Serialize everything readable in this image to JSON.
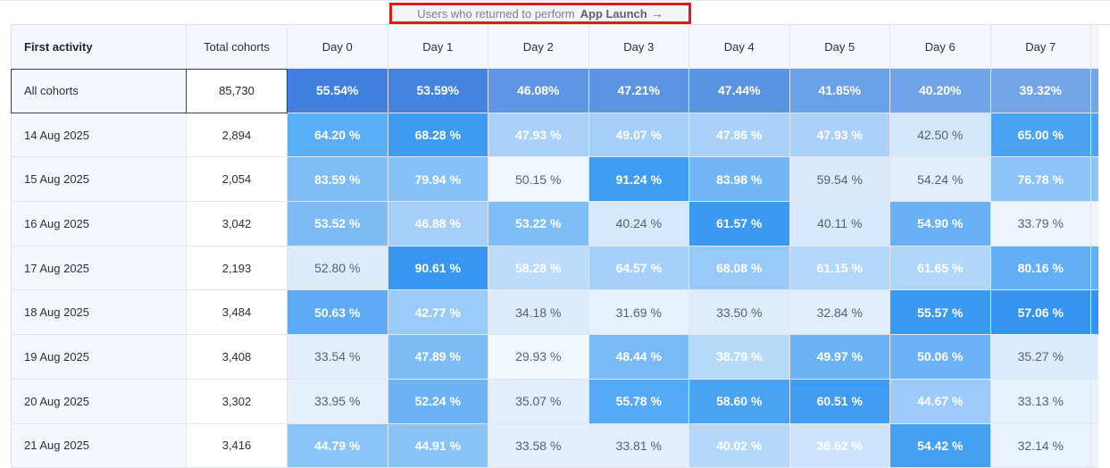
{
  "banner": {
    "prefix": "Users who returned to perform",
    "event": "App Launch",
    "arrow": "→"
  },
  "table": {
    "headers": {
      "first_activity": "First activity",
      "total_cohorts": "Total cohorts",
      "days": [
        "Day 0",
        "Day 1",
        "Day 2",
        "Day 3",
        "Day 4",
        "Day 5",
        "Day 6",
        "Day 7"
      ]
    },
    "all_cohorts": {
      "label": "All cohorts",
      "total": "85,730",
      "values": [
        "55.54%",
        "53.59%",
        "46.08%",
        "47.21%",
        "47.44%",
        "41.85%",
        "40.20%",
        "39.32%"
      ],
      "colors": [
        "#3f7fdf",
        "#4583e0",
        "#5e95e4",
        "#5c93e3",
        "#5b93e3",
        "#6aa0e7",
        "#70a3e8",
        "#73a5e8"
      ]
    },
    "rows": [
      {
        "date": "14 Aug 2025",
        "total": "2,894",
        "values": [
          "64.20 %",
          "68.28 %",
          "47.93 %",
          "49.07 %",
          "47.86 %",
          "47.93 %",
          "42.50 %",
          "65.00 %"
        ],
        "colors": [
          "#5aaef6",
          "#3d9cf1",
          "#a9d1fa",
          "#a4cffa",
          "#a9d1fa",
          "#a9d1fa",
          "#d3e7fb",
          "#4aa4f3"
        ],
        "dark": [
          true,
          true,
          true,
          true,
          true,
          true,
          false,
          true
        ]
      },
      {
        "date": "15 Aug 2025",
        "total": "2,054",
        "values": [
          "83.59 %",
          "79.94 %",
          "50.15 %",
          "91.24 %",
          "83.98 %",
          "59.54 %",
          "54.24 %",
          "76.78 %"
        ],
        "colors": [
          "#7fbdf8",
          "#86c1f8",
          "#f1f7fe",
          "#3e9cf1",
          "#72b6f6",
          "#d8eafc",
          "#e0eefd",
          "#8dc5f8"
        ],
        "dark": [
          true,
          true,
          false,
          true,
          true,
          false,
          false,
          true
        ]
      },
      {
        "date": "16 Aug 2025",
        "total": "3,042",
        "values": [
          "53.52 %",
          "46.88 %",
          "53.22 %",
          "40.24 %",
          "61.57 %",
          "40.11 %",
          "54.90 %",
          "33.79 %"
        ],
        "colors": [
          "#7dbcf7",
          "#a5cff9",
          "#7fbdf7",
          "#d5e8fc",
          "#3a99f1",
          "#d5e8fc",
          "#68b1f5",
          "#eef5fd"
        ],
        "dark": [
          true,
          true,
          true,
          false,
          true,
          false,
          true,
          false
        ]
      },
      {
        "date": "17 Aug 2025",
        "total": "2,193",
        "values": [
          "52.80 %",
          "90.61 %",
          "58.28 %",
          "64.57 %",
          "68.08 %",
          "61.15 %",
          "61.65 %",
          "80.16 %"
        ],
        "colors": [
          "#dcecfc",
          "#3797f1",
          "#bddcfb",
          "#a6d0fa",
          "#97c9f9",
          "#b3d7fa",
          "#b0d6fa",
          "#62aff5"
        ],
        "dark": [
          false,
          true,
          true,
          true,
          true,
          true,
          true,
          true
        ]
      },
      {
        "date": "18 Aug 2025",
        "total": "3,484",
        "values": [
          "50.63 %",
          "42.77 %",
          "34.18 %",
          "31.69 %",
          "33.50 %",
          "32.84 %",
          "55.57 %",
          "57.06 %"
        ],
        "colors": [
          "#5eaaf5",
          "#9bcbf9",
          "#dcecfc",
          "#e6f1fd",
          "#deedfc",
          "#e1eefd",
          "#3a99f1",
          "#3594f0"
        ],
        "dark": [
          true,
          true,
          false,
          false,
          false,
          false,
          true,
          true
        ]
      },
      {
        "date": "19 Aug 2025",
        "total": "3,408",
        "values": [
          "33.54 %",
          "47.89 %",
          "29.93 %",
          "48.44 %",
          "38.79 %",
          "49.97 %",
          "50.06 %",
          "35.27 %"
        ],
        "colors": [
          "#e3effc",
          "#7dbcf7",
          "#f3f8fe",
          "#78b9f7",
          "#b8daf9",
          "#6cb3f6",
          "#6bb3f6",
          "#dcecfc"
        ],
        "dark": [
          false,
          true,
          false,
          true,
          true,
          true,
          true,
          false
        ]
      },
      {
        "date": "20 Aug 2025",
        "total": "3,302",
        "values": [
          "33.95 %",
          "52.24 %",
          "35.07 %",
          "55.78 %",
          "58.60 %",
          "60.51 %",
          "44.67 %",
          "33.13 %"
        ],
        "colors": [
          "#e5f0fd",
          "#6cb3f6",
          "#e1eefd",
          "#56a9f5",
          "#4aa2f3",
          "#3f9cf2",
          "#9ccbf9",
          "#e8f2fd"
        ],
        "dark": [
          false,
          true,
          false,
          true,
          true,
          true,
          true,
          false
        ]
      },
      {
        "date": "21 Aug 2025",
        "total": "3,416",
        "values": [
          "44.79 %",
          "44.91 %",
          "33.58 %",
          "33.81 %",
          "40.02 %",
          "36.62 %",
          "54.42 %",
          "32.14 %"
        ],
        "colors": [
          "#8ac4f8",
          "#89c3f8",
          "#e2effd",
          "#e1eefd",
          "#b5d8fa",
          "#cbe4fb",
          "#44a0f3",
          "#eaf3fd"
        ],
        "dark": [
          true,
          true,
          false,
          false,
          true,
          true,
          true,
          false
        ]
      }
    ]
  }
}
